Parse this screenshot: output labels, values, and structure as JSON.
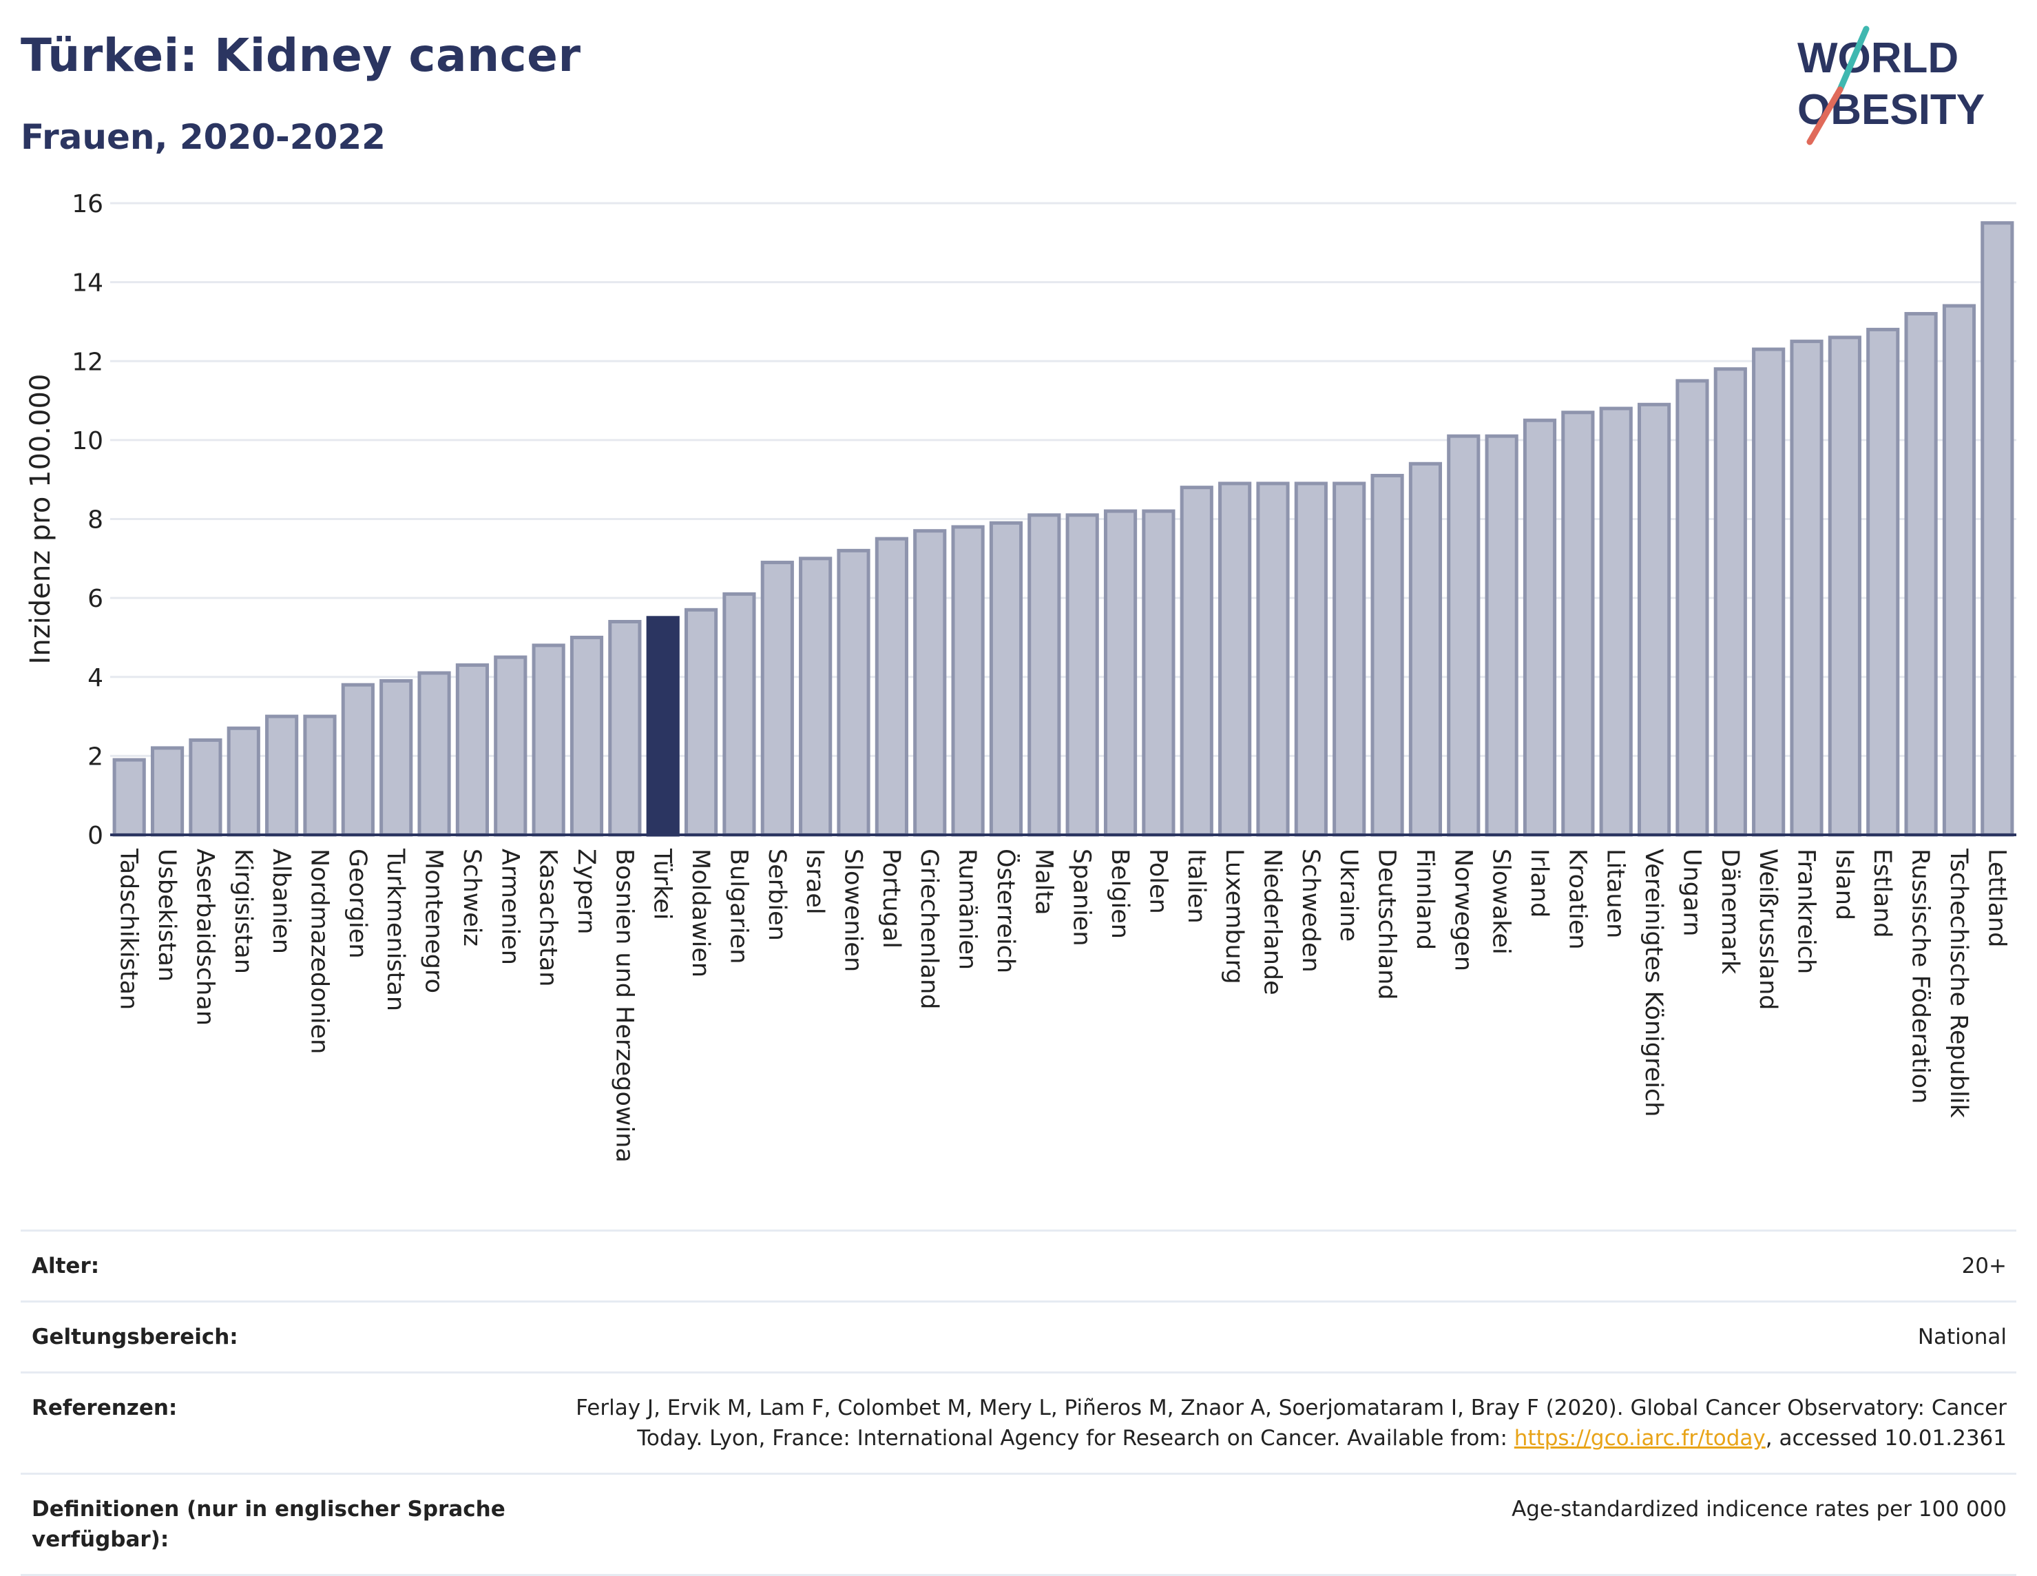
{
  "title": "Türkei: Kidney cancer",
  "subtitle": "Frauen, 2020-2022",
  "logo": {
    "line1": "WORLD",
    "line2": "OBESITY"
  },
  "colors": {
    "bar": "#bcc0d0",
    "bar_stroke": "#8e94ad",
    "highlight": "#2b3561",
    "grid": "#e6e9ef",
    "axis": "#2b3561",
    "title": "#2b3561"
  },
  "chart_data": {
    "type": "bar",
    "title": "Türkei: Kidney cancer",
    "subtitle": "Frauen, 2020-2022",
    "ylabel": "Inzidenz pro 100.000",
    "xlabel": "",
    "ylim": [
      0,
      16
    ],
    "yticks": [
      0,
      2,
      4,
      6,
      8,
      10,
      12,
      14,
      16
    ],
    "grid": true,
    "highlight": "Türkei",
    "categories": [
      "Tadschikistan",
      "Usbekistan",
      "Aserbaidschan",
      "Kirgisistan",
      "Albanien",
      "Nordmazedonien",
      "Georgien",
      "Turkmenistan",
      "Montenegro",
      "Schweiz",
      "Armenien",
      "Kasachstan",
      "Zypern",
      "Bosnien und Herzegowina",
      "Türkei",
      "Moldawien",
      "Bulgarien",
      "Serbien",
      "Israel",
      "Slowenien",
      "Portugal",
      "Griechenland",
      "Rumänien",
      "Österreich",
      "Malta",
      "Spanien",
      "Belgien",
      "Polen",
      "Italien",
      "Luxemburg",
      "Niederlande",
      "Schweden",
      "Ukraine",
      "Deutschland",
      "Finnland",
      "Norwegen",
      "Slowakei",
      "Irland",
      "Kroatien",
      "Litauen",
      "Vereinigtes Königreich",
      "Ungarn",
      "Dänemark",
      "Weißrussland",
      "Frankreich",
      "Island",
      "Estland",
      "Russische Föderation",
      "Tschechische Republik",
      "Lettland"
    ],
    "values": [
      1.9,
      2.2,
      2.4,
      2.7,
      3.0,
      3.0,
      3.8,
      3.9,
      4.1,
      4.3,
      4.5,
      4.8,
      5.0,
      5.4,
      5.5,
      5.7,
      6.1,
      6.9,
      7.0,
      7.2,
      7.5,
      7.7,
      7.8,
      7.9,
      8.1,
      8.1,
      8.2,
      8.2,
      8.8,
      8.9,
      8.9,
      8.9,
      8.9,
      9.1,
      9.4,
      10.1,
      10.1,
      10.5,
      10.7,
      10.8,
      10.9,
      11.5,
      11.8,
      12.3,
      12.5,
      12.6,
      12.8,
      13.2,
      13.4,
      15.5
    ]
  },
  "meta": {
    "age_label": "Alter:",
    "age_value": "20+",
    "scope_label": "Geltungsbereich:",
    "scope_value": "National",
    "refs_label": "Referenzen:",
    "refs_text_1": "Ferlay J, Ervik M, Lam F, Colombet M, Mery L, Piñeros M, Znaor A, Soerjomataram I, Bray F (2020). Global Cancer Observatory: Cancer Today. Lyon, France: International Agency for Research on Cancer. Available from: ",
    "refs_link": "https://gco.iarc.fr/today",
    "refs_text_2": ", accessed 10.01.2361",
    "defs_label": "Definitionen (nur in englischer Sprache verfügbar):",
    "defs_value": "Age-standardized indicence rates per 100 000"
  }
}
